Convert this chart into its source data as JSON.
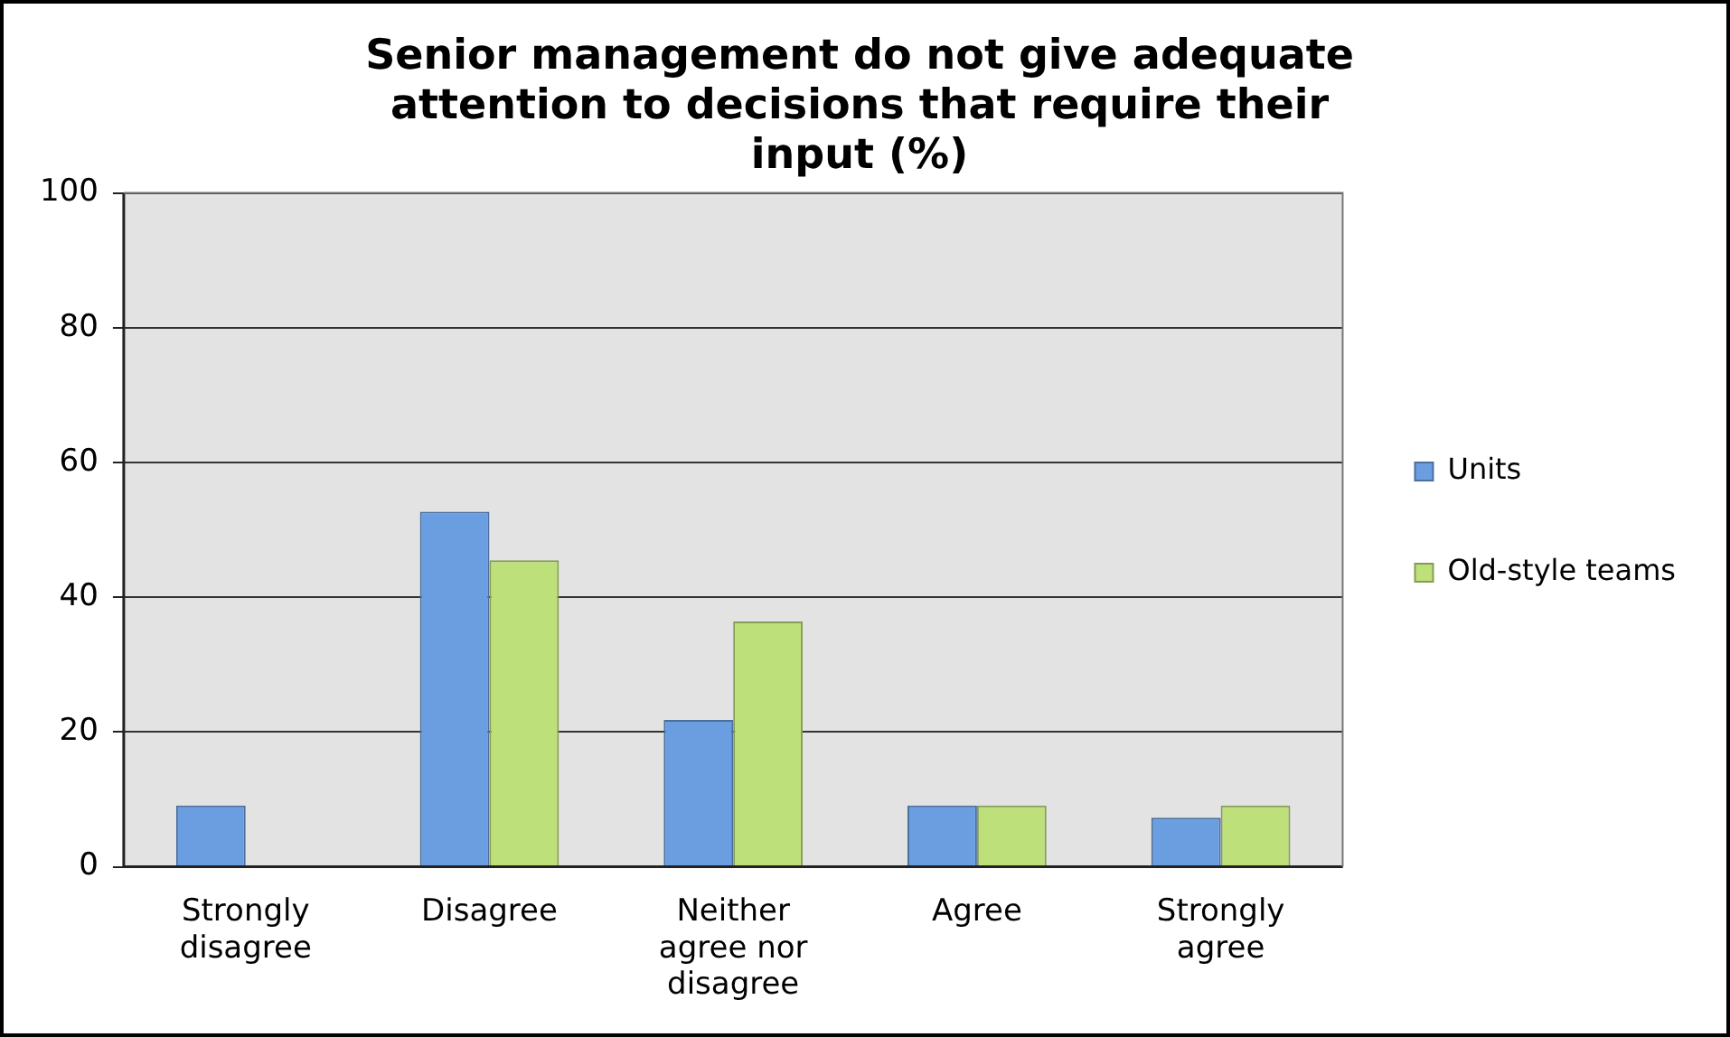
{
  "chart_data": {
    "type": "bar",
    "title": "Senior management do not give adequate attention to decisions that require their input (%)",
    "categories": [
      "Strongly disagree",
      "Disagree",
      "Neither agree nor disagree",
      "Agree",
      "Strongly agree"
    ],
    "series": [
      {
        "name": "Units",
        "color": "#6a9ee0",
        "values": [
          9.1,
          52.7,
          21.8,
          9.1,
          7.3
        ]
      },
      {
        "name": "Old-style teams",
        "color": "#bde07a",
        "values": [
          0,
          45.5,
          36.4,
          9.1,
          9.1
        ]
      }
    ],
    "ylim": [
      0,
      100
    ],
    "yticks": [
      0,
      20,
      40,
      60,
      80,
      100
    ],
    "grid": "y",
    "legend": "right"
  }
}
